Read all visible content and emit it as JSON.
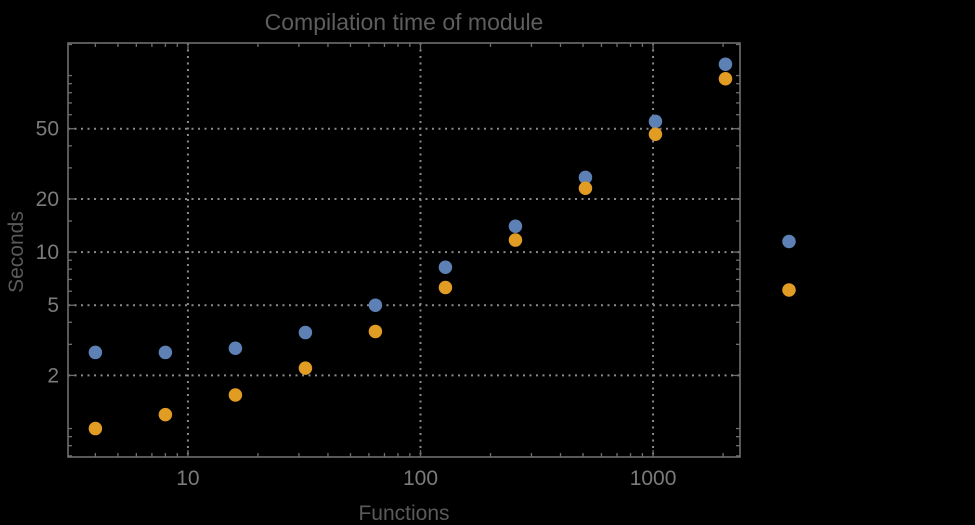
{
  "chart_data": {
    "type": "scatter",
    "title": "Compilation time of module",
    "xlabel": "Functions",
    "ylabel": "Seconds",
    "x_scale": "log",
    "y_scale": "log",
    "xlim": [
      3.05,
      2365
    ],
    "ylim": [
      0.69,
      153
    ],
    "x": [
      4,
      8,
      16,
      32,
      64,
      128,
      256,
      512,
      1024,
      2048
    ],
    "series": [
      {
        "name": "series-blue",
        "color": "#5e81b5",
        "values": [
          2.7,
          2.7,
          2.85,
          3.5,
          5.0,
          8.2,
          14.0,
          26.5,
          55.0,
          116.0
        ]
      },
      {
        "name": "series-orange",
        "color": "#e19c24",
        "values": [
          1.0,
          1.2,
          1.55,
          2.2,
          3.55,
          6.3,
          11.7,
          23.0,
          46.5,
          96.0
        ]
      }
    ],
    "x_ticks": {
      "labeled": [
        10,
        100,
        1000
      ],
      "labels": [
        "10",
        "100",
        "1000"
      ],
      "minor": [
        4,
        5,
        6,
        7,
        8,
        9,
        20,
        30,
        40,
        50,
        60,
        70,
        80,
        90,
        200,
        300,
        400,
        500,
        600,
        700,
        800,
        900,
        2000
      ]
    },
    "y_ticks": {
      "labeled": [
        2,
        5,
        10,
        20,
        50
      ],
      "labels": [
        "2",
        "5",
        "10",
        "20",
        "50"
      ],
      "minor": [
        0.7,
        0.8,
        0.9,
        1,
        3,
        4,
        6,
        7,
        8,
        9,
        15,
        30,
        40,
        60,
        70,
        80,
        90,
        100,
        150
      ]
    },
    "grid": {
      "style": "dotted",
      "on_labeled_ticks_only": true
    },
    "legend": {
      "position": "outside-right",
      "entries": [
        {
          "label": "",
          "color": "#5e81b5"
        },
        {
          "label": "",
          "color": "#e19c24"
        }
      ]
    },
    "marker": {
      "shape": "circle",
      "diameter": 13.5
    },
    "colors": {
      "background": "#000000",
      "frame": "#6e6e6e",
      "grid": "#8a8a8a",
      "tick_labels": "#7b7b7b",
      "axis_labels": "#5a5a5a",
      "title": "#5e5e5e"
    }
  }
}
